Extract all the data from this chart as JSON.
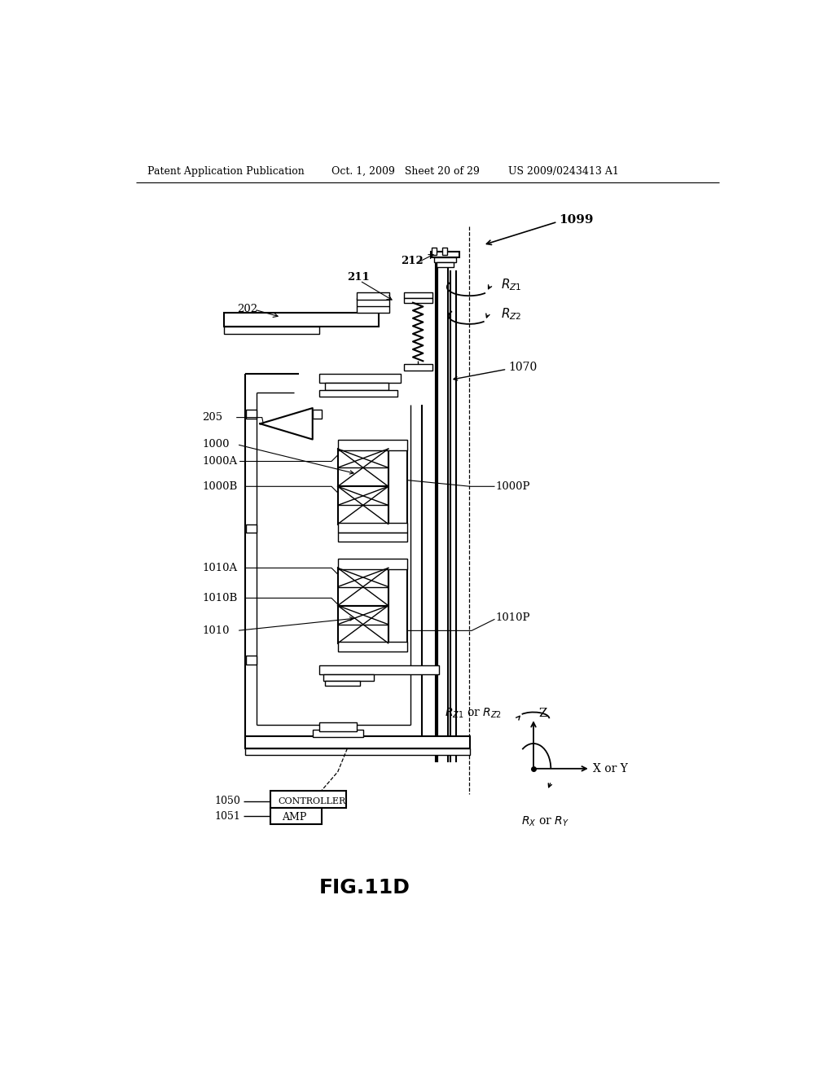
{
  "bg_color": "#ffffff",
  "header_left": "Patent Application Publication",
  "header_mid": "Oct. 1, 2009   Sheet 20 of 29",
  "header_right": "US 2009/0243413 A1"
}
